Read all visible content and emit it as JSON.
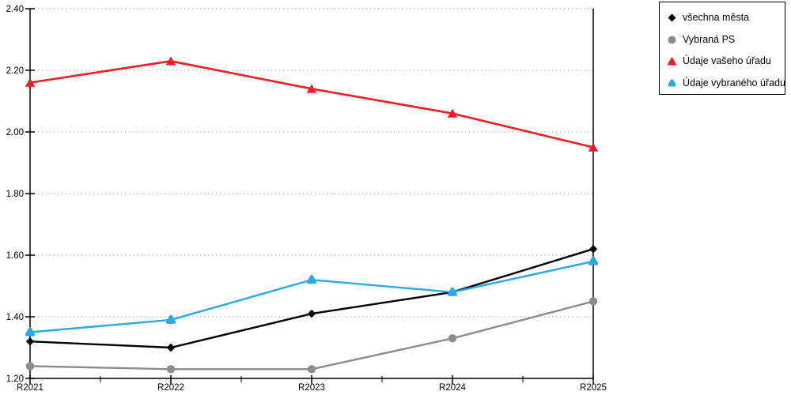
{
  "chart_data": {
    "type": "line",
    "title": "",
    "xlabel": "",
    "ylabel": "",
    "x_categories": [
      "R2021",
      "R2022",
      "R2023",
      "R2024",
      "R2025"
    ],
    "series": [
      {
        "name": "všechna města",
        "color": "#000000",
        "marker": "diamond",
        "values": [
          1.32,
          1.3,
          1.41,
          1.48,
          1.62
        ]
      },
      {
        "name": "Vybraná PS",
        "color": "#8C8C8C",
        "marker": "circle",
        "values": [
          1.24,
          1.23,
          1.23,
          1.33,
          1.45
        ]
      },
      {
        "name": "Údaje vašeho úřadu",
        "color": "#EE1C25",
        "marker": "triangle",
        "values": [
          2.16,
          2.23,
          2.14,
          2.06,
          1.95
        ]
      },
      {
        "name": "Údaje vybraného úřadu",
        "color": "#29ABE2",
        "marker": "triangle-rounded",
        "values": [
          1.35,
          1.39,
          1.52,
          1.48,
          1.58
        ]
      }
    ],
    "draw_order": [
      1,
      0,
      3,
      2
    ],
    "ylim": [
      1.2,
      2.4
    ],
    "ytick_step": 0.2,
    "ytick_labels": [
      "1.20",
      "1.40",
      "1.60",
      "1.80",
      "2.00",
      "2.20",
      "2.40"
    ],
    "grid": "horizontal-dotted",
    "grid_color": "#ABABAB",
    "axis_color": "#000000",
    "background_color": "#ffffff",
    "legend_position": "top-right",
    "legend_border_color": "#000000"
  }
}
